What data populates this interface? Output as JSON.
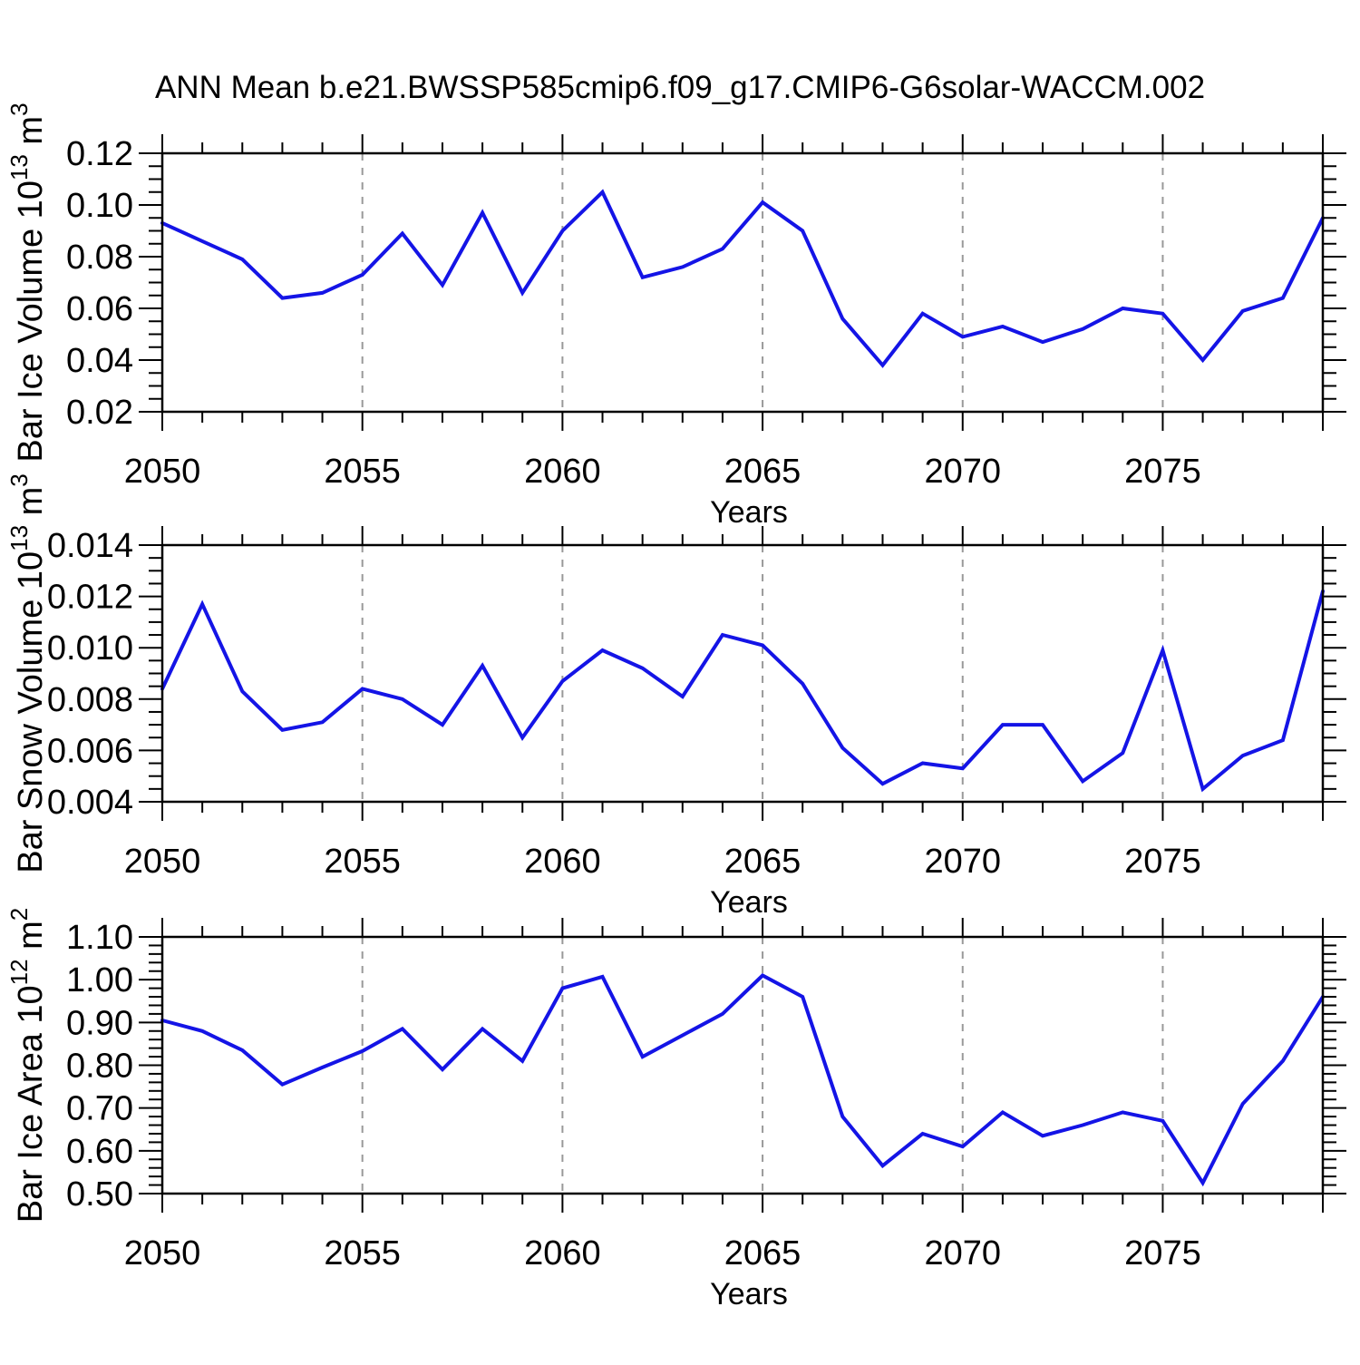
{
  "title": "ANN Mean b.e21.BWSSP585cmip6.f09_g17.CMIP6-G6solar-WACCM.002",
  "xlabel": "Years",
  "line_color": "#1414e6",
  "grid_color": "#999999",
  "frame_color": "#000000",
  "x_tick_label_years": [
    2050,
    2055,
    2060,
    2065,
    2070,
    2075
  ],
  "grid_years": [
    2055,
    2060,
    2065,
    2070,
    2075
  ],
  "chart_data": [
    {
      "type": "line",
      "name": "ice-volume",
      "title": "",
      "ylabel": "Bar Ice Volume 10^13^ m^3^",
      "xlabel": "Years",
      "ylim": [
        0.02,
        0.12
      ],
      "ytick_step": 0.02,
      "yminor_step": 0.005,
      "ytick_decimals": 2,
      "grid": "vertical-dashed",
      "legend_position": "none",
      "x": [
        2050,
        2051,
        2052,
        2053,
        2054,
        2055,
        2056,
        2057,
        2058,
        2059,
        2060,
        2061,
        2062,
        2063,
        2064,
        2065,
        2066,
        2067,
        2068,
        2069,
        2070,
        2071,
        2072,
        2073,
        2074,
        2075,
        2076,
        2077,
        2078,
        2079
      ],
      "values": [
        0.093,
        0.086,
        0.079,
        0.064,
        0.066,
        0.073,
        0.089,
        0.069,
        0.097,
        0.066,
        0.09,
        0.105,
        0.072,
        0.076,
        0.083,
        0.101,
        0.09,
        0.056,
        0.038,
        0.058,
        0.049,
        0.053,
        0.047,
        0.052,
        0.06,
        0.058,
        0.04,
        0.059,
        0.064,
        0.095
      ]
    },
    {
      "type": "line",
      "name": "snow-volume",
      "title": "",
      "ylabel": "Bar Snow Volume 10^13^ m^3^",
      "xlabel": "Years",
      "ylim": [
        0.004,
        0.014
      ],
      "ytick_step": 0.002,
      "yminor_step": 0.0005,
      "ytick_decimals": 3,
      "grid": "vertical-dashed",
      "legend_position": "none",
      "x": [
        2050,
        2051,
        2052,
        2053,
        2054,
        2055,
        2056,
        2057,
        2058,
        2059,
        2060,
        2061,
        2062,
        2063,
        2064,
        2065,
        2066,
        2067,
        2068,
        2069,
        2070,
        2071,
        2072,
        2073,
        2074,
        2075,
        2076,
        2077,
        2078,
        2079
      ],
      "values": [
        0.0084,
        0.0117,
        0.0083,
        0.0068,
        0.0071,
        0.0084,
        0.008,
        0.007,
        0.0093,
        0.0065,
        0.0087,
        0.0099,
        0.0092,
        0.0081,
        0.0105,
        0.0101,
        0.0086,
        0.0061,
        0.0047,
        0.0055,
        0.0053,
        0.007,
        0.007,
        0.0048,
        0.0059,
        0.0099,
        0.0045,
        0.0058,
        0.0064,
        0.0122
      ]
    },
    {
      "type": "line",
      "name": "ice-area",
      "title": "",
      "ylabel": "Bar Ice Area 10^12^ m^2^",
      "xlabel": "Years",
      "ylim": [
        0.5,
        1.1
      ],
      "ytick_step": 0.1,
      "yminor_step": 0.02,
      "ytick_decimals": 2,
      "grid": "vertical-dashed",
      "legend_position": "none",
      "x": [
        2050,
        2051,
        2052,
        2053,
        2054,
        2055,
        2056,
        2057,
        2058,
        2059,
        2060,
        2061,
        2062,
        2063,
        2064,
        2065,
        2066,
        2067,
        2068,
        2069,
        2070,
        2071,
        2072,
        2073,
        2074,
        2075,
        2076,
        2077,
        2078,
        2079
      ],
      "values": [
        0.905,
        0.88,
        0.835,
        0.755,
        0.795,
        0.833,
        0.885,
        0.79,
        0.885,
        0.81,
        0.98,
        1.007,
        0.82,
        0.87,
        0.92,
        1.01,
        0.96,
        0.68,
        0.565,
        0.64,
        0.61,
        0.69,
        0.635,
        0.66,
        0.69,
        0.67,
        0.525,
        0.71,
        0.81,
        0.96
      ]
    }
  ]
}
